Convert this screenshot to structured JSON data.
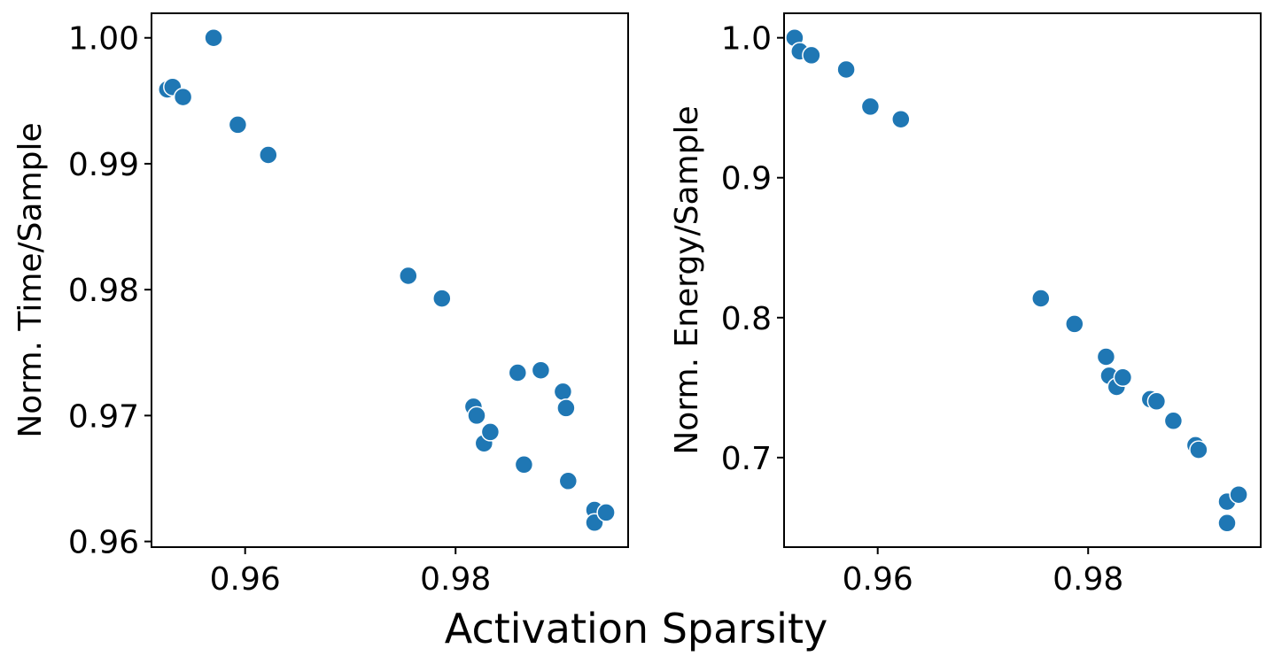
{
  "figure": {
    "shared_xlabel": "Activation Sparsity"
  },
  "colors": {
    "marker": "#1f77b4",
    "marker_edge": "#ffffff",
    "axes": "#000000"
  },
  "chart_data": [
    {
      "type": "scatter",
      "title": "",
      "xlabel": "",
      "ylabel": "Norm. Time/Sample",
      "xlim": [
        0.9511,
        0.9964
      ],
      "ylim": [
        0.95955,
        1.00195
      ],
      "xticks": [
        0.96,
        0.98
      ],
      "xtick_labels": [
        "0.96",
        "0.98"
      ],
      "yticks": [
        0.96,
        0.97,
        0.98,
        0.99,
        1.0
      ],
      "ytick_labels": [
        "0.96",
        "0.97",
        "0.98",
        "0.99",
        "1.00"
      ],
      "grid": false,
      "legend": "none",
      "points": [
        {
          "x": 0.9526,
          "y": 0.9959
        },
        {
          "x": 0.9531,
          "y": 0.9961
        },
        {
          "x": 0.9541,
          "y": 0.9953
        },
        {
          "x": 0.957,
          "y": 1.0
        },
        {
          "x": 0.9593,
          "y": 0.9931
        },
        {
          "x": 0.9622,
          "y": 0.9907
        },
        {
          "x": 0.9755,
          "y": 0.9811
        },
        {
          "x": 0.9787,
          "y": 0.9793
        },
        {
          "x": 0.9817,
          "y": 0.9707
        },
        {
          "x": 0.982,
          "y": 0.97
        },
        {
          "x": 0.9827,
          "y": 0.9678
        },
        {
          "x": 0.9833,
          "y": 0.9687
        },
        {
          "x": 0.9859,
          "y": 0.9734
        },
        {
          "x": 0.9865,
          "y": 0.9661
        },
        {
          "x": 0.9881,
          "y": 0.9736
        },
        {
          "x": 0.9902,
          "y": 0.9719
        },
        {
          "x": 0.9905,
          "y": 0.9706
        },
        {
          "x": 0.9907,
          "y": 0.9648
        },
        {
          "x": 0.9932,
          "y": 0.9625
        },
        {
          "x": 0.9932,
          "y": 0.9615
        },
        {
          "x": 0.9943,
          "y": 0.9623
        }
      ]
    },
    {
      "type": "scatter",
      "title": "",
      "xlabel": "",
      "ylabel": "Norm. Energy/Sample",
      "xlim": [
        0.9511,
        0.9964
      ],
      "ylim": [
        0.636,
        1.0175
      ],
      "xticks": [
        0.96,
        0.98
      ],
      "xtick_labels": [
        "0.96",
        "0.98"
      ],
      "yticks": [
        0.7,
        0.8,
        0.9,
        1.0
      ],
      "ytick_labels": [
        "0.7",
        "0.8",
        "0.9",
        "1.0"
      ],
      "grid": false,
      "legend": "none",
      "points": [
        {
          "x": 0.9521,
          "y": 1.0
        },
        {
          "x": 0.9526,
          "y": 0.9903
        },
        {
          "x": 0.9537,
          "y": 0.9875
        },
        {
          "x": 0.957,
          "y": 0.9773
        },
        {
          "x": 0.9593,
          "y": 0.9508
        },
        {
          "x": 0.9622,
          "y": 0.9418
        },
        {
          "x": 0.9755,
          "y": 0.8138
        },
        {
          "x": 0.9787,
          "y": 0.7955
        },
        {
          "x": 0.9817,
          "y": 0.772
        },
        {
          "x": 0.982,
          "y": 0.7585
        },
        {
          "x": 0.9827,
          "y": 0.7505
        },
        {
          "x": 0.9833,
          "y": 0.7573
        },
        {
          "x": 0.9859,
          "y": 0.7417
        },
        {
          "x": 0.9865,
          "y": 0.7402
        },
        {
          "x": 0.9881,
          "y": 0.7263
        },
        {
          "x": 0.9902,
          "y": 0.7088
        },
        {
          "x": 0.9905,
          "y": 0.7055
        },
        {
          "x": 0.9932,
          "y": 0.6685
        },
        {
          "x": 0.9932,
          "y": 0.6532
        },
        {
          "x": 0.9943,
          "y": 0.6735
        }
      ]
    }
  ]
}
